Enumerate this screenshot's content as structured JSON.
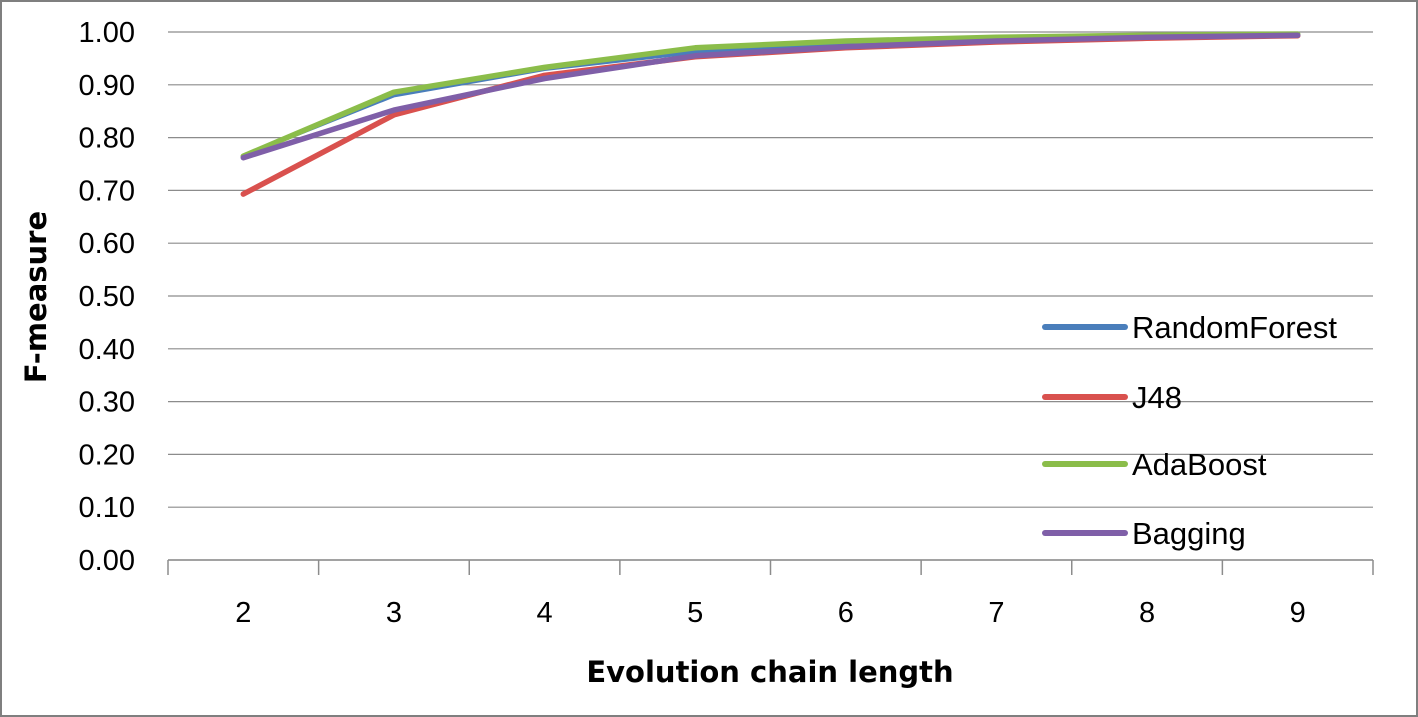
{
  "chart_data": {
    "type": "line",
    "title": "",
    "xlabel": "Evolution chain length",
    "ylabel": "F-measure",
    "categories": [
      "2",
      "3",
      "4",
      "5",
      "6",
      "7",
      "8",
      "9"
    ],
    "ylim": [
      0,
      1
    ],
    "yticks": [
      "0.00",
      "0.10",
      "0.20",
      "0.30",
      "0.40",
      "0.50",
      "0.60",
      "0.70",
      "0.80",
      "0.90",
      "1.00"
    ],
    "grid": "horizontal",
    "legend_position": "right",
    "series": [
      {
        "name": "RandomForest",
        "color": "#4a7ebb",
        "values": [
          0.766,
          0.88,
          0.93,
          0.962,
          0.978,
          0.987,
          0.992,
          0.995
        ]
      },
      {
        "name": "J48",
        "color": "#d9514e",
        "values": [
          0.693,
          0.843,
          0.918,
          0.953,
          0.97,
          0.981,
          0.988,
          0.993
        ]
      },
      {
        "name": "AdaBoost",
        "color": "#8bbd4a",
        "values": [
          0.765,
          0.886,
          0.933,
          0.97,
          0.983,
          0.99,
          0.994,
          0.996
        ]
      },
      {
        "name": "Bagging",
        "color": "#7f5fa8",
        "values": [
          0.762,
          0.852,
          0.912,
          0.955,
          0.972,
          0.983,
          0.99,
          0.994
        ]
      }
    ]
  }
}
